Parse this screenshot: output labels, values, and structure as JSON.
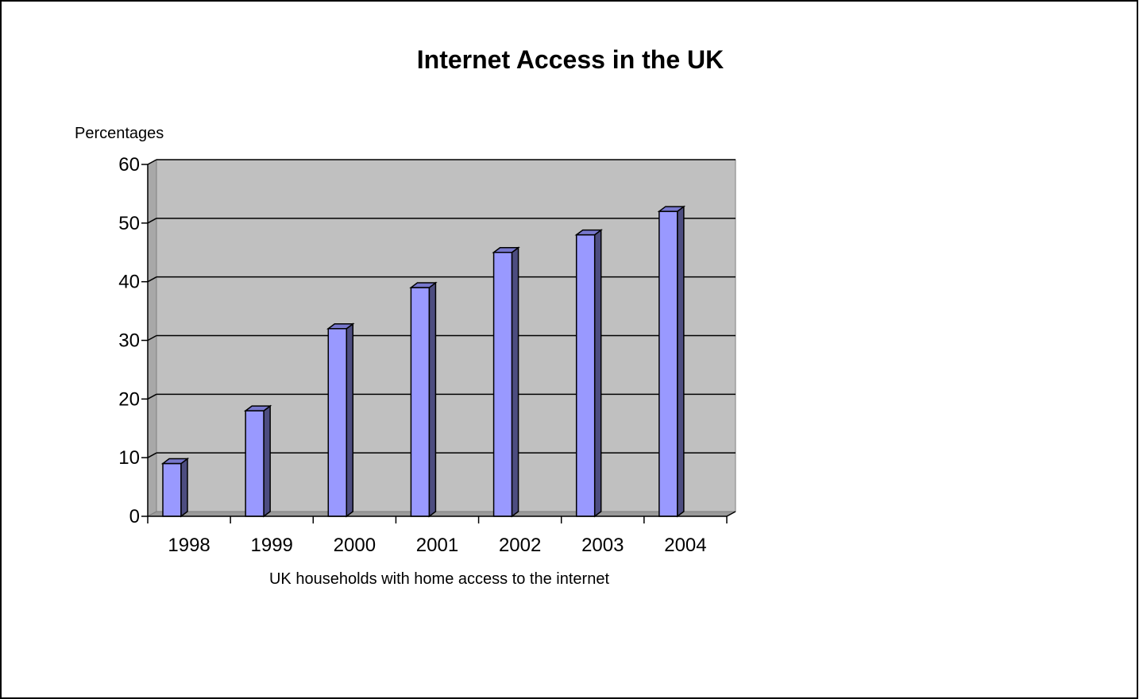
{
  "chart_data": {
    "type": "bar",
    "title": "Internet Access in the UK",
    "ylabel": "Percentages",
    "xlabel": "UK households with home access to the internet",
    "categories": [
      "1998",
      "1999",
      "2000",
      "2001",
      "2002",
      "2003",
      "2004"
    ],
    "values": [
      9,
      18,
      32,
      39,
      45,
      48,
      52
    ],
    "ylim": [
      0,
      60
    ],
    "yticks": [
      "0",
      "10",
      "20",
      "30",
      "40",
      "50",
      "60"
    ],
    "grid": true,
    "legend": "none",
    "colors": {
      "bar_front": "#9999ff",
      "bar_side": "#4d4d80",
      "bar_top": "#7777cc",
      "plot_background": "#c0c0c0",
      "gridline": "#000000"
    }
  }
}
